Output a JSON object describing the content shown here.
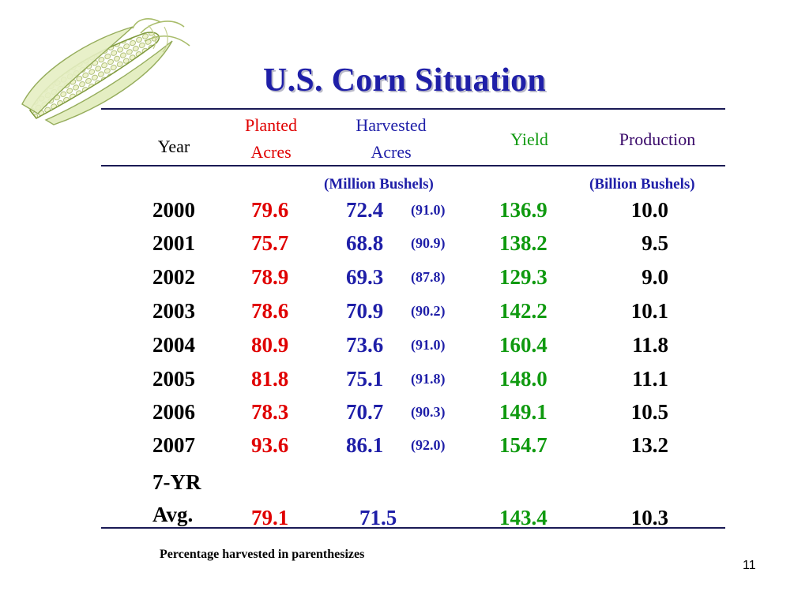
{
  "title": "U.S. Corn Situation",
  "headers": {
    "year": "Year",
    "planted_line1": "Planted",
    "planted_line2": "Acres",
    "harvested_line1": "Harvested",
    "harvested_line2": "Acres",
    "yield": "Yield",
    "production": "Production"
  },
  "units": {
    "acres": "(Million Bushels)",
    "production": "(Billion Bushels)"
  },
  "rows": [
    {
      "year": "2000",
      "planted": "79.6",
      "harvested": "72.4",
      "pct": "(91.0)",
      "yield": "136.9",
      "production": "10.0"
    },
    {
      "year": "2001",
      "planted": "75.7",
      "harvested": "68.8",
      "pct": "(90.9)",
      "yield": "138.2",
      "production": "9.5"
    },
    {
      "year": "2002",
      "planted": "78.9",
      "harvested": "69.3",
      "pct": "(87.8)",
      "yield": "129.3",
      "production": "9.0"
    },
    {
      "year": "2003",
      "planted": "78.6",
      "harvested": "70.9",
      "pct": "(90.2)",
      "yield": "142.2",
      "production": "10.1"
    },
    {
      "year": "2004",
      "planted": "80.9",
      "harvested": "73.6",
      "pct": "(91.0)",
      "yield": "160.4",
      "production": "11.8"
    },
    {
      "year": "2005",
      "planted": "81.8",
      "harvested": "75.1",
      "pct": "(91.8)",
      "yield": "148.0",
      "production": "11.1"
    },
    {
      "year": "2006",
      "planted": "78.3",
      "harvested": "70.7",
      "pct": "(90.3)",
      "yield": "149.1",
      "production": "10.5"
    },
    {
      "year": "2007",
      "planted": "93.6",
      "harvested": "86.1",
      "pct": "(92.0)",
      "yield": "154.7",
      "production": "13.2"
    }
  ],
  "average": {
    "label_line1": "7-YR",
    "label_line2": "Avg.",
    "planted": "79.1",
    "harvested": "71.5",
    "yield": "143.4",
    "production": "10.3"
  },
  "footnote": "Percentage harvested in parenthesizes",
  "page_number": "11",
  "colors": {
    "title": "#1f1fa8",
    "planted": "#e00000",
    "harvested": "#1f1fa8",
    "yield": "#109a10",
    "production_header": "#3a0a6a"
  },
  "logo_icon": "corn-cob-icon"
}
